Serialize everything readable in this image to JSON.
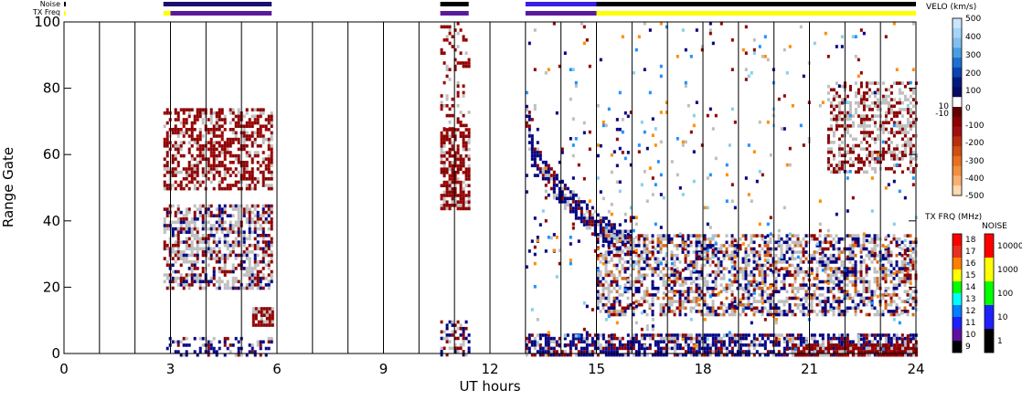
{
  "chart_data": {
    "type": "heatmap",
    "xlabel": "UT hours",
    "ylabel": "Range Gate",
    "xlim": [
      0,
      24
    ],
    "ylim": [
      0,
      100
    ],
    "x_ticks": [
      0,
      3,
      6,
      9,
      12,
      15,
      18,
      21,
      24
    ],
    "y_ticks": [
      0,
      20,
      40,
      60,
      80,
      100
    ],
    "minor_x_lines": [
      0,
      1,
      2,
      3,
      4,
      5,
      6,
      7,
      8,
      9,
      10,
      11,
      12,
      13,
      14,
      15,
      16,
      17,
      18,
      19,
      20,
      21,
      22,
      23
    ],
    "top_bars": {
      "noise_label": "Noise",
      "txfreq_label": "TX Freq",
      "noise_segments": [
        {
          "x0": 0.0,
          "x1": 0.05,
          "color": "#000000"
        },
        {
          "x0": 2.8,
          "x1": 5.85,
          "color": "#1a0f6e"
        },
        {
          "x0": 10.6,
          "x1": 11.4,
          "color": "#000000"
        },
        {
          "x0": 13.0,
          "x1": 15.0,
          "color": "#3a1fe0"
        },
        {
          "x0": 15.0,
          "x1": 24.0,
          "color": "#000000"
        }
      ],
      "txfreq_segments": [
        {
          "x0": 0.0,
          "x1": 0.05,
          "color": "#ffff00"
        },
        {
          "x0": 2.8,
          "x1": 3.0,
          "color": "#ffff00"
        },
        {
          "x0": 3.0,
          "x1": 5.85,
          "color": "#5a1a9a"
        },
        {
          "x0": 10.6,
          "x1": 11.4,
          "color": "#5a1a9a"
        },
        {
          "x0": 13.0,
          "x1": 15.0,
          "color": "#5a1a9a"
        },
        {
          "x0": 15.0,
          "x1": 24.0,
          "color": "#ffff00"
        }
      ]
    },
    "velocity_colorbar": {
      "title": "VELO (km/s)",
      "ticks": [
        "500",
        "400",
        "300",
        "200",
        "100",
        "0",
        "10",
        "-10",
        "-100",
        "-200",
        "-300",
        "-400",
        "-500"
      ]
    },
    "txfreq_colorbar": {
      "title": "TX FRQ (MHz)",
      "ticks": [
        "18",
        "17",
        "16",
        "15",
        "14",
        "13",
        "12",
        "11",
        "10",
        "9"
      ],
      "colors": [
        "#ff0000",
        "#e83020",
        "#ff8000",
        "#ffff00",
        "#00ff00",
        "#00ffff",
        "#0080ff",
        "#2020ff",
        "#6010a0",
        "#000000"
      ]
    },
    "noise_colorbar": {
      "title": "NOISE",
      "ticks": [
        "10000",
        "1000",
        "100",
        "10",
        "1"
      ],
      "colors": [
        "#ff0000",
        "#ffff00",
        "#00ff00",
        "#2020ff",
        "#000000"
      ]
    },
    "scatter_regions": [
      {
        "x0": 2.8,
        "x1": 5.85,
        "y0": 50,
        "y1": 74,
        "dominant": "darkred",
        "density": 0.55
      },
      {
        "x0": 2.8,
        "x1": 5.85,
        "y0": 20,
        "y1": 45,
        "dominant": "mixed_red_gray",
        "density": 0.6
      },
      {
        "x0": 2.8,
        "x1": 5.85,
        "y0": 0,
        "y1": 5,
        "dominant": "navy",
        "density": 0.35
      },
      {
        "x0": 5.3,
        "x1": 5.85,
        "y0": 9,
        "y1": 14,
        "dominant": "darkred",
        "density": 0.9
      },
      {
        "x0": 10.6,
        "x1": 11.4,
        "y0": 44,
        "y1": 68,
        "dominant": "darkred",
        "density": 0.7
      },
      {
        "x0": 10.6,
        "x1": 11.4,
        "y0": 68,
        "y1": 100,
        "dominant": "darkred",
        "density": 0.2
      },
      {
        "x0": 10.6,
        "x1": 11.4,
        "y0": 0,
        "y1": 10,
        "dominant": "mixed_red_navy",
        "density": 0.5
      },
      {
        "x0": 13.0,
        "x1": 24.0,
        "y0": 0,
        "y1": 6,
        "dominant": "navy",
        "density": 0.7
      },
      {
        "x0": 13.0,
        "x1": 16.0,
        "y0": 30,
        "y1": 75,
        "dominant": "navy_arc",
        "density": 0.5
      },
      {
        "x0": 15.0,
        "x1": 24.0,
        "y0": 12,
        "y1": 36,
        "dominant": "gray_navy_red",
        "density": 0.55
      },
      {
        "x0": 21.5,
        "x1": 24.0,
        "y0": 55,
        "y1": 82,
        "dominant": "gray_red",
        "density": 0.45
      },
      {
        "x0": 20.5,
        "x1": 24.0,
        "y0": 0,
        "y1": 3,
        "dominant": "darkred",
        "density": 0.8
      },
      {
        "x0": 13.0,
        "x1": 24.0,
        "y0": 0,
        "y1": 100,
        "dominant": "sparse_mixed",
        "density": 0.03
      }
    ]
  }
}
